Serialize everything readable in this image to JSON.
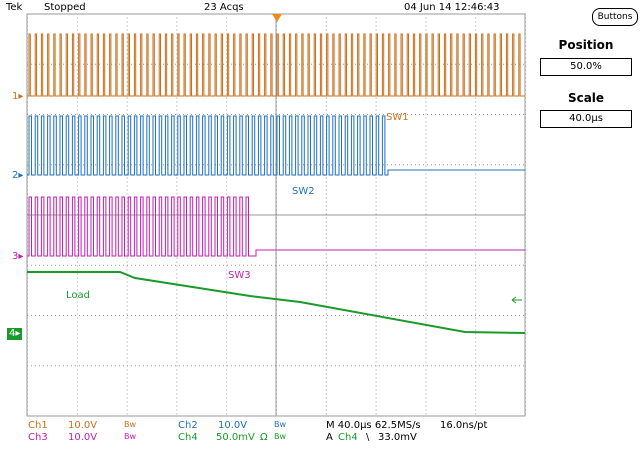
{
  "top_bar": {
    "brand": "Tek",
    "state": "Stopped",
    "acqs": "23 Acqs",
    "datetime": "04 Jun 14 12:46:43"
  },
  "channels": [
    {
      "id": "ch1",
      "marker": "1",
      "label": "SW1",
      "color": "#c8701e"
    },
    {
      "id": "ch2",
      "marker": "2",
      "label": "SW2",
      "color": "#1f6fc3"
    },
    {
      "id": "ch3",
      "marker": "3",
      "label": "SW3",
      "color": "#c020b0"
    },
    {
      "id": "ch4",
      "marker": "4",
      "label": "Load",
      "color": "#1a9a2a"
    }
  ],
  "right_panel": {
    "buttons_label": "Buttons",
    "position_label": "Position",
    "position_value": "50.0%",
    "scale_label": "Scale",
    "scale_value": "40.0μs"
  },
  "readouts": {
    "ch1": {
      "name": "Ch1",
      "volts": "10.0V",
      "bw": "Bw"
    },
    "ch2": {
      "name": "Ch2",
      "volts": "10.0V",
      "bw": "Bw"
    },
    "ch3": {
      "name": "Ch3",
      "volts": "10.0V",
      "bw": "Bw"
    },
    "ch4": {
      "name": "Ch4",
      "volts": "50.0mV",
      "ohm": "Ω",
      "bw": "Bw"
    },
    "timebase": "M 40.0μs 62.5MS/s",
    "resolution": "16.0ns/pt",
    "trigger_a": "A",
    "trigger_ch": "Ch4",
    "trigger_slope": "\\",
    "trigger_level": "33.0mV"
  }
}
